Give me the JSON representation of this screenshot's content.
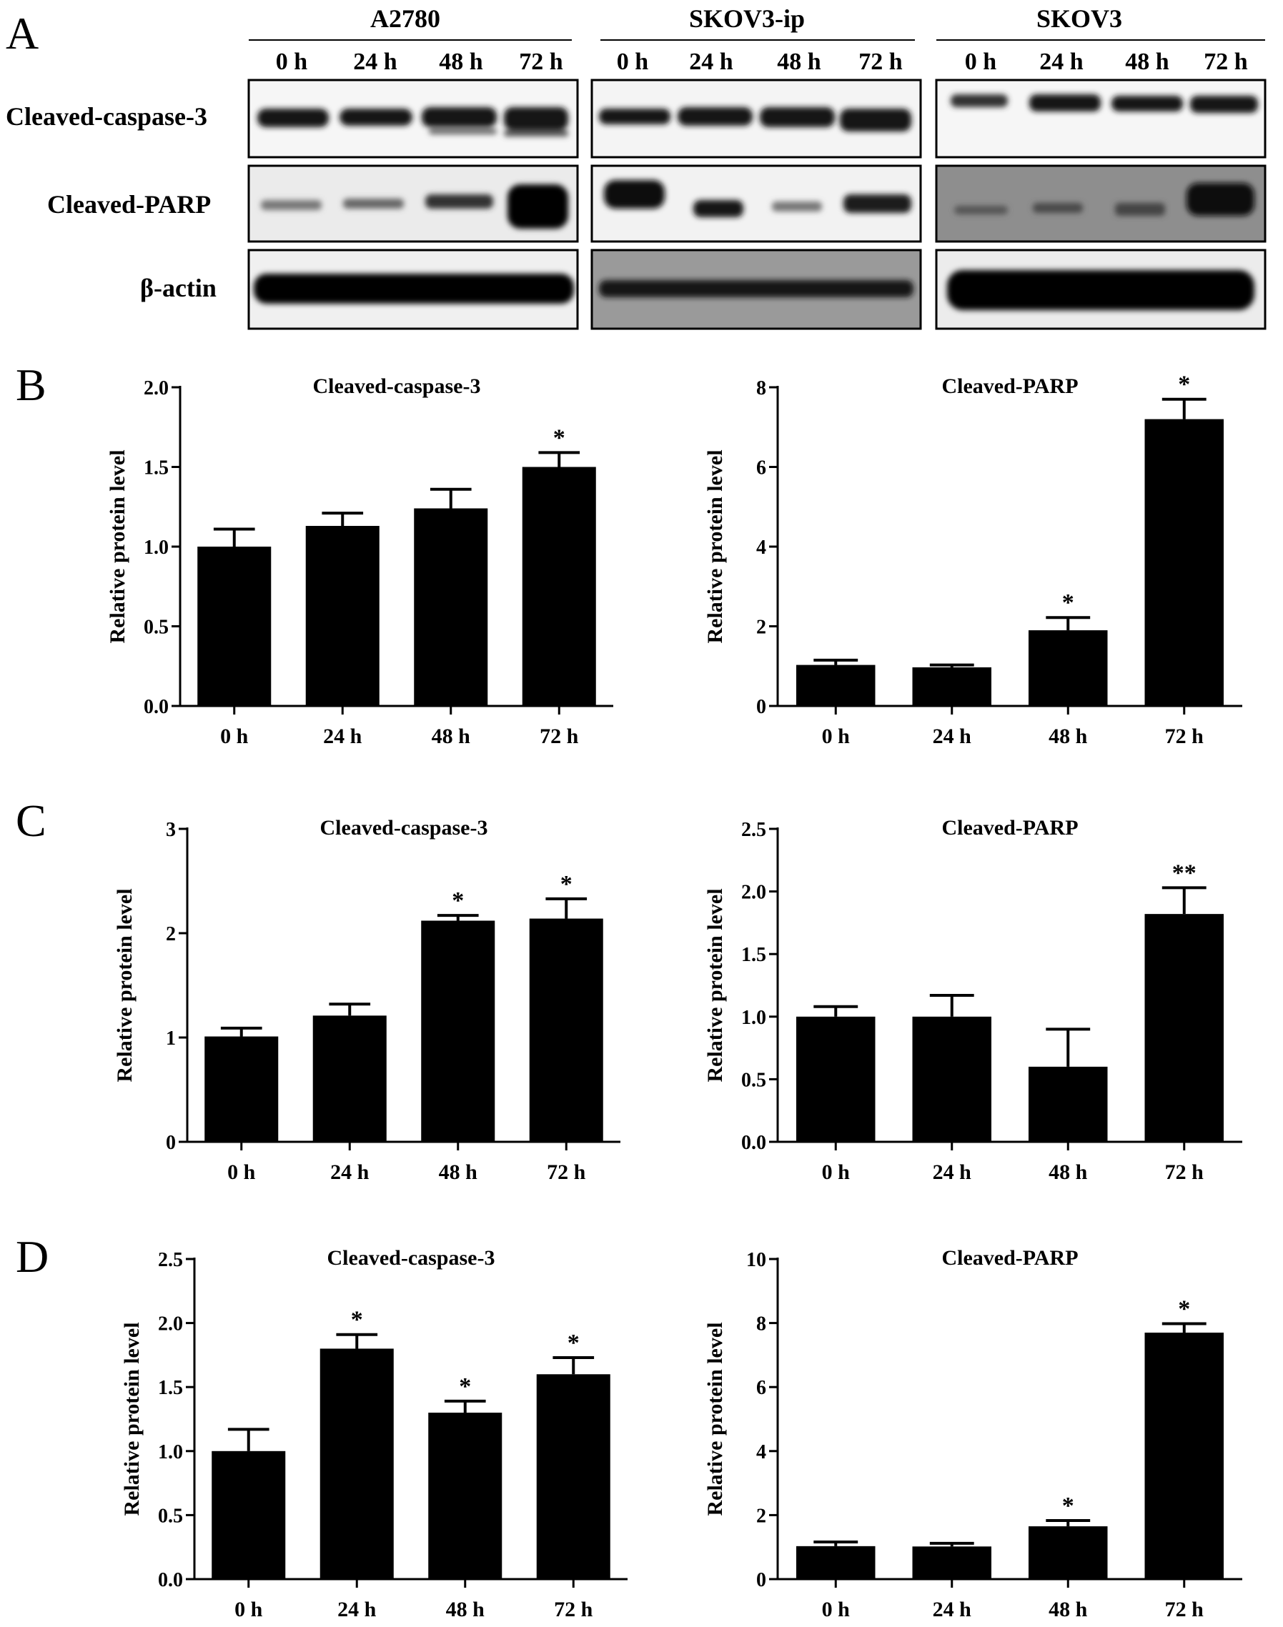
{
  "panels": [
    "A",
    "B",
    "C",
    "D"
  ],
  "western_blot": {
    "cell_lines": [
      "A2780",
      "SKOV3-ip",
      "SKOV3"
    ],
    "timepoints": [
      "0 h",
      "24 h",
      "48 h",
      "72 h"
    ],
    "proteins": [
      "Cleaved-caspase-3",
      "Cleaved-PARP",
      "β-actin"
    ]
  },
  "chart_data": [
    {
      "panel": "B",
      "type": "bar",
      "title": "Cleaved-caspase-3",
      "ylabel": "Relative protein level",
      "categories": [
        "0 h",
        "24 h",
        "48 h",
        "72 h"
      ],
      "values": [
        1.0,
        1.13,
        1.24,
        1.5
      ],
      "errors": [
        0.11,
        0.08,
        0.12,
        0.09
      ],
      "significance": [
        "",
        "",
        "",
        "*"
      ],
      "ylim": [
        0,
        2.0
      ],
      "yticks": [
        "0.0",
        "0.5",
        "1.0",
        "1.5",
        "2.0"
      ],
      "color": "#000000"
    },
    {
      "panel": "B",
      "type": "bar",
      "title": "Cleaved-PARP",
      "ylabel": "Relative protein level",
      "categories": [
        "0 h",
        "24 h",
        "48 h",
        "72 h"
      ],
      "values": [
        1.03,
        0.97,
        1.9,
        7.2
      ],
      "errors": [
        0.12,
        0.06,
        0.32,
        0.5
      ],
      "significance": [
        "",
        "",
        "*",
        "*"
      ],
      "ylim": [
        0,
        8
      ],
      "yticks": [
        "0",
        "2",
        "4",
        "6",
        "8"
      ],
      "color": "#000000"
    },
    {
      "panel": "C",
      "type": "bar",
      "title": "Cleaved-caspase-3",
      "ylabel": "Relative protein level",
      "categories": [
        "0 h",
        "24 h",
        "48 h",
        "72 h"
      ],
      "values": [
        1.01,
        1.21,
        2.12,
        2.14
      ],
      "errors": [
        0.08,
        0.11,
        0.05,
        0.19
      ],
      "significance": [
        "",
        "",
        "*",
        "*"
      ],
      "ylim": [
        0,
        3
      ],
      "yticks": [
        "0",
        "1",
        "2",
        "3"
      ],
      "color": "#000000"
    },
    {
      "panel": "C",
      "type": "bar",
      "title": "Cleaved-PARP",
      "ylabel": "Relative protein level",
      "categories": [
        "0 h",
        "24 h",
        "48 h",
        "72 h"
      ],
      "values": [
        1.0,
        1.0,
        0.6,
        1.82
      ],
      "errors": [
        0.08,
        0.17,
        0.3,
        0.21
      ],
      "significance": [
        "",
        "",
        "",
        "**"
      ],
      "ylim": [
        0,
        2.5
      ],
      "yticks": [
        "0.0",
        "0.5",
        "1.0",
        "1.5",
        "2.0",
        "2.5"
      ],
      "color": "#000000"
    },
    {
      "panel": "D",
      "type": "bar",
      "title": "Cleaved-caspase-3",
      "ylabel": "Relative protein level",
      "categories": [
        "0 h",
        "24 h",
        "48 h",
        "72 h"
      ],
      "values": [
        1.0,
        1.8,
        1.3,
        1.6
      ],
      "errors": [
        0.17,
        0.11,
        0.09,
        0.13
      ],
      "significance": [
        "",
        "*",
        "*",
        "*"
      ],
      "ylim": [
        0,
        2.5
      ],
      "yticks": [
        "0.0",
        "0.5",
        "1.0",
        "1.5",
        "2.0",
        "2.5"
      ],
      "color": "#000000"
    },
    {
      "panel": "D",
      "type": "bar",
      "title": "Cleaved-PARP",
      "ylabel": "Relative protein level",
      "categories": [
        "0 h",
        "24 h",
        "48 h",
        "72 h"
      ],
      "values": [
        1.03,
        1.02,
        1.65,
        7.7
      ],
      "errors": [
        0.13,
        0.1,
        0.18,
        0.28
      ],
      "significance": [
        "",
        "",
        "*",
        "*"
      ],
      "ylim": [
        0,
        10
      ],
      "yticks": [
        "0",
        "2",
        "4",
        "6",
        "8",
        "10"
      ],
      "color": "#000000"
    }
  ]
}
